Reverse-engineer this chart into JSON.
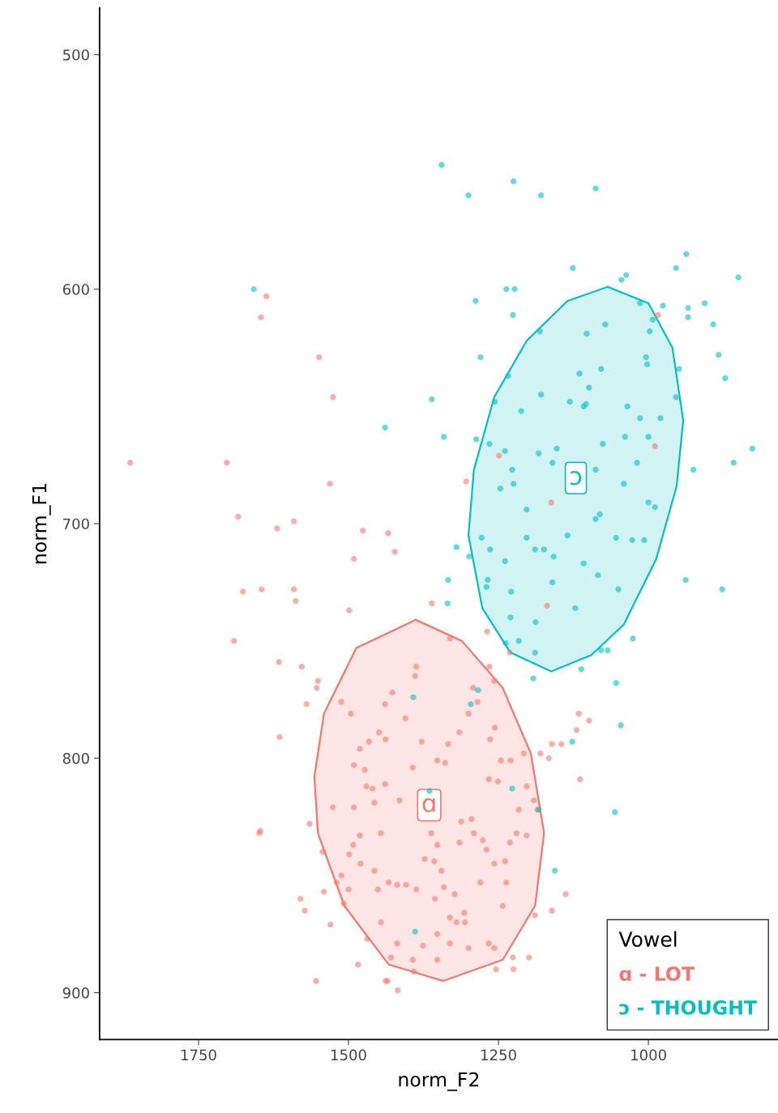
{
  "chart_data": {
    "type": "scatter",
    "xlabel": "norm_F2",
    "ylabel": "norm_F1",
    "xlim": [
      1915,
      784
    ],
    "xticks": [
      1750,
      1500,
      1250,
      1000
    ],
    "ylim": [
      920,
      480
    ],
    "yticks": [
      500,
      600,
      700,
      800,
      900
    ],
    "grid": false,
    "legend": "bottom right",
    "legend_title": "Vowel",
    "series": [
      {
        "name": "ɑ - LOT",
        "color": "#f8766d",
        "marker": "circle",
        "x": [
          1864,
          1703,
          1637,
          1646,
          1549,
          1526,
          1531,
          1684,
          1619,
          1591,
          1676,
          1645,
          1591,
          1588,
          1691,
          1616,
          1578,
          1570,
          1551,
          1553,
          1615,
          1499,
          1491,
          1476,
          1434,
          1423,
          1361,
          1331,
          1304,
          1249,
          1162,
          1169,
          989,
          984,
          1269,
          1649,
          1647,
          1565,
          1543,
          1580,
          1573,
          1530,
          1554,
          1484,
          1438,
          1435,
          1418,
          1469,
          1429,
          1393,
          1391,
          1352,
          1300,
          1257,
          1226,
          1199,
          1225,
          1254,
          1189,
          1161,
          1138,
          1145,
          1120,
          1116,
          1099,
          1114,
          1161,
          1166,
          1180,
          1257,
          1265,
          1231,
          1292,
          1285,
          1256,
          1264,
          1246,
          1230,
          1266,
          1251,
          1208,
          1203,
          1191,
          1185,
          1216,
          1220,
          1203,
          1231,
          1239,
          1295,
          1291,
          1312,
          1315,
          1276,
          1270,
          1257,
          1237,
          1280,
          1243,
          1266,
          1306,
          1320,
          1307,
          1331,
          1323,
          1341,
          1356,
          1345,
          1357,
          1373,
          1352,
          1362,
          1415,
          1439,
          1460,
          1473,
          1491,
          1481,
          1466,
          1449,
          1438,
          1439,
          1427,
          1387,
          1389,
          1405,
          1393,
          1378,
          1352,
          1339,
          1334,
          1315,
          1300,
          1512,
          1496,
          1526,
          1491,
          1470,
          1457,
          1446,
          1481,
          1492,
          1499,
          1512,
          1480,
          1457,
          1520,
          1541,
          1508,
          1500,
          1451,
          1433,
          1419,
          1404,
          1387,
          1446,
          1419,
          1376,
          1352,
          1331
        ],
        "values": [
          674,
          674,
          603,
          612,
          629,
          646,
          683,
          697,
          702,
          699,
          729,
          728,
          728,
          733,
          750,
          759,
          761,
          777,
          767,
          770,
          791,
          737,
          715,
          703,
          704,
          712,
          734,
          749,
          682,
          671,
          691,
          735,
          667,
          611,
          746,
          832,
          831,
          828,
          840,
          860,
          865,
          871,
          895,
          888,
          895,
          895,
          899,
          877,
          885,
          886,
          891,
          886,
          881,
          881,
          885,
          885,
          890,
          890,
          867,
          865,
          858,
          794,
          788,
          781,
          784,
          809,
          794,
          800,
          798,
          767,
          761,
          755,
          770,
          776,
          787,
          792,
          801,
          801,
          809,
          810,
          798,
          812,
          818,
          822,
          822,
          832,
          833,
          836,
          844,
          826,
          832,
          827,
          836,
          835,
          839,
          845,
          853,
          853,
          863,
          879,
          870,
          870,
          866,
          868,
          858,
          855,
          860,
          848,
          844,
          843,
          837,
          832,
          818,
          811,
          813,
          805,
          803,
          796,
          793,
          789,
          792,
          777,
          772,
          761,
          765,
          783,
          804,
          793,
          801,
          802,
          794,
          789,
          781,
          776,
          781,
          821,
          821,
          812,
          819,
          832,
          833,
          837,
          841,
          850,
          845,
          848,
          853,
          857,
          862,
          856,
          856,
          853,
          854,
          854,
          856,
          870,
          879,
          880,
          875,
          879
        ]
      },
      {
        "name": "ɔ - THOUGHT",
        "color": "#00bfc4",
        "marker": "circle",
        "x": [
          1345,
          1225,
          1300,
          1179,
          1088,
          1126,
          1037,
          1045,
          954,
          937,
          850,
          1288,
          1237,
          1223,
          1226,
          1181,
          1072,
          1103,
          1014,
          976,
          993,
          998,
          934,
          906,
          934,
          892,
          1280,
          1361,
          1439,
          1341,
          883,
          872,
          949,
          954,
          980,
          925,
          858,
          827,
          938,
          877,
          1079,
          1099,
          1115,
          1004,
          1002,
          1256,
          1234,
          1212,
          1179,
          1131,
          1108,
          1104,
          1035,
          1014,
          1000,
          1287,
          1265,
          1239,
          1183,
          1153,
          1247,
          1227,
          1160,
          1039,
          1076,
          1019,
          1041,
          1088,
          1081,
          1000,
          989,
          1007,
          1054,
          1027,
          1088,
          1225,
          1203,
          1278,
          1264,
          1239,
          1203,
          1189,
          1174,
          1158,
          1135,
          1108,
          1084,
          1050,
          1122,
          1160,
          1188,
          1299,
          1320,
          1334,
          1335,
          1268,
          1270,
          1229,
          1230,
          1238,
          1216,
          1189,
          1192,
          1112,
          1079,
          1068,
          1054,
          1026,
          1046,
          1056,
          1156,
          1127,
          1296,
          1284,
          1392,
          1365,
          1227,
          1183,
          1389,
          1658
        ],
        "values": [
          547,
          554,
          560,
          560,
          557,
          591,
          594,
          596,
          591,
          585,
          595,
          605,
          600,
          600,
          611,
          618,
          615,
          619,
          606,
          607,
          613,
          618,
          608,
          606,
          612,
          615,
          629,
          647,
          659,
          663,
          628,
          638,
          634,
          646,
          655,
          677,
          674,
          668,
          724,
          728,
          634,
          642,
          636,
          629,
          632,
          648,
          637,
          652,
          645,
          648,
          650,
          649,
          650,
          655,
          663,
          664,
          666,
          669,
          670,
          668,
          685,
          677,
          674,
          663,
          666,
          674,
          683,
          677,
          696,
          691,
          693,
          707,
          706,
          707,
          698,
          683,
          694,
          706,
          711,
          716,
          706,
          711,
          711,
          714,
          705,
          717,
          722,
          728,
          736,
          725,
          742,
          714,
          710,
          724,
          734,
          724,
          727,
          729,
          740,
          751,
          750,
          755,
          766,
          762,
          754,
          754,
          768,
          749,
          786,
          823,
          848,
          793,
          777,
          771,
          774,
          814,
          813,
          822,
          874,
          600
        ]
      },
      {
        "color": "#f8766d",
        "type": "area",
        "x": [
          1388,
          1311,
          1243,
          1196,
          1174,
          1189,
          1243,
          1342,
          1433,
          1507,
          1551,
          1557,
          1541,
          1487,
          1388
        ],
        "values": [
          741,
          750,
          770,
          798,
          832,
          863,
          886,
          895,
          888,
          863,
          832,
          808,
          781,
          753,
          741
        ]
      },
      {
        "color": "#00bfc4",
        "type": "area",
        "x": [
          1068,
          1000,
          960,
          942,
          953,
          987,
          1041,
          1095,
          1162,
          1230,
          1277,
          1300,
          1291,
          1257,
          1203,
          1135,
          1068
        ],
        "values": [
          599,
          606,
          625,
          656,
          684,
          715,
          743,
          756,
          763,
          755,
          736,
          705,
          677,
          646,
          622,
          605,
          599
        ]
      }
    ],
    "annotations": [
      "ɑ",
      "ɔ"
    ]
  }
}
